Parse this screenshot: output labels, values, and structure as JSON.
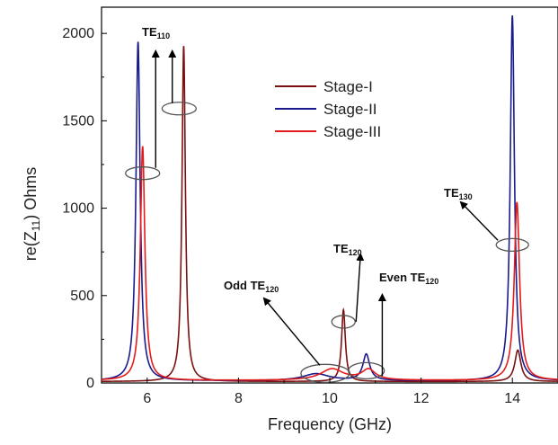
{
  "chart_data": {
    "type": "line",
    "xlabel": "Frequency (GHz)",
    "ylabel": "re(Z11) Ohms",
    "ylabel_parts": {
      "main": "re(Z",
      "sub": "11",
      "tail": ") Ohms"
    },
    "xlim": [
      5,
      15
    ],
    "ylim": [
      0,
      2150
    ],
    "x_ticks": [
      6,
      8,
      10,
      12,
      14
    ],
    "y_ticks": [
      0,
      500,
      1000,
      1500,
      2000
    ],
    "legend_position": "top-center",
    "grid": false,
    "series": [
      {
        "name": "Stage-I",
        "color": "#7a1010",
        "peaks": [
          {
            "f": 6.8,
            "a": 1920,
            "w": 0.045
          },
          {
            "f": 10.3,
            "a": 410,
            "w": 0.05
          },
          {
            "f": 14.12,
            "a": 180,
            "w": 0.08
          }
        ],
        "baseline": 8
      },
      {
        "name": "Stage-II",
        "color": "#1a1a8c",
        "peaks": [
          {
            "f": 5.8,
            "a": 1940,
            "w": 0.055
          },
          {
            "f": 9.7,
            "a": 40,
            "w": 0.35
          },
          {
            "f": 10.8,
            "a": 150,
            "w": 0.09
          },
          {
            "f": 14.0,
            "a": 2090,
            "w": 0.055
          }
        ],
        "baseline": 12
      },
      {
        "name": "Stage-III",
        "color": "#e41b1b",
        "peaks": [
          {
            "f": 5.9,
            "a": 1340,
            "w": 0.06
          },
          {
            "f": 10.05,
            "a": 65,
            "w": 0.3
          },
          {
            "f": 10.85,
            "a": 60,
            "w": 0.18
          },
          {
            "f": 14.1,
            "a": 1020,
            "w": 0.07
          }
        ],
        "baseline": 14
      }
    ],
    "annotations": [
      {
        "main": "TE",
        "sub": "110",
        "ellipses": [
          {
            "x": 5.9,
            "y": 1200
          },
          {
            "x": 6.7,
            "y": 1570
          }
        ]
      },
      {
        "main": "TE",
        "sub": "120",
        "ellipses": [
          {
            "x": 10.3,
            "y": 350
          }
        ]
      },
      {
        "main": "Odd TE",
        "sub": "120",
        "ellipses": [
          {
            "x": 9.9,
            "y": 55
          }
        ]
      },
      {
        "main": "Even TE",
        "sub": "120",
        "ellipses": [
          {
            "x": 10.8,
            "y": 70
          }
        ]
      },
      {
        "main": "TE",
        "sub": "130",
        "ellipses": [
          {
            "x": 14.0,
            "y": 790
          }
        ]
      }
    ]
  }
}
